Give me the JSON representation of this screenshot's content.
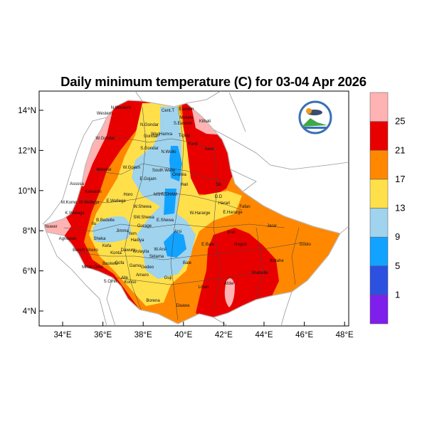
{
  "title": "Daily minimum temperature (C) for 03-04 Apr 2026",
  "axes": {
    "x_ticks": [
      "34°E",
      "36°E",
      "38°E",
      "40°E",
      "42°E",
      "44°E",
      "46°E",
      "48°E"
    ],
    "y_ticks": [
      "4°N",
      "6°N",
      "8°N",
      "10°N",
      "12°N",
      "14°N"
    ]
  },
  "legend": {
    "levels": [
      "1",
      "5",
      "9",
      "13",
      "17",
      "21",
      "25"
    ],
    "colors": [
      "#7f1fec",
      "#2c50e0",
      "#12a2ff",
      "#9fd3ee",
      "#ffe04a",
      "#ff8800",
      "#e80000",
      "#ffb3b3"
    ]
  },
  "logo": {
    "name": "ethiopian-meteorology-institute-logo"
  },
  "zones": [
    "N.Western",
    "Western",
    "Cent.T",
    "Eastern",
    "Mekele",
    "S.Eastern",
    "N.Gondar",
    "Kilbati",
    "W.Gondar",
    "Gondar",
    "WagHamra",
    "Tigray",
    "Fanti",
    "Awsi",
    "S.Gondar",
    "N.Wollo",
    "W.Gojam",
    "Metekel",
    "South Wello",
    "Oromia",
    "E.Gojam",
    "Hari",
    "Assosa",
    "Kamashi",
    "Horo",
    "NSH",
    "NSHAM",
    "Siti",
    "M.Komo",
    "W.Wellega",
    "E.Wellega",
    "W.Shewa",
    "D.D",
    "Harari",
    "Fafan",
    "W.Hararge",
    "E.Hararge",
    "K.Wellega",
    "B.Bedelle",
    "SW.Shewa",
    "E.Shewa",
    "Nuwer",
    "Ilu",
    "Jimma",
    "Gurage",
    "Jarar",
    "Arsi",
    "Agnewak",
    "Sheka",
    "Yem",
    "Hadiya",
    "Kefa",
    "Erer",
    "W.Arsi",
    "Dawuro",
    "Wolayita",
    "Konta",
    "Bench Sheko",
    "Doolo",
    "Nogob",
    "E.Bale",
    "Sidama",
    "Gofa",
    "Basketo",
    "Gamo",
    "Gedeo",
    "Bale",
    "Korahe",
    "Mirab Omo",
    "Amaro",
    "Guji",
    "Alle",
    "Konso",
    "Shabelle",
    "S.Omo",
    "Liban",
    "Afder",
    "Borena",
    "Daawa"
  ]
}
